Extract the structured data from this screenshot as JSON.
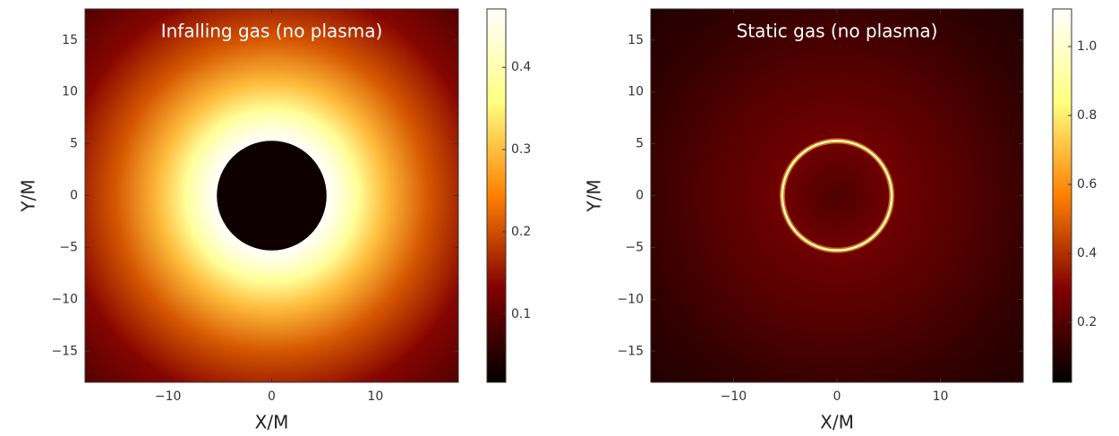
{
  "chart_data": [
    {
      "type": "image",
      "title": "Infalling gas (no plasma)",
      "x_label": "X/M",
      "y_label": "Y/M",
      "colormap": "afmhot",
      "xlim": [
        -18,
        18
      ],
      "ylim": [
        -18,
        18
      ],
      "xticks": [
        {
          "value": -10,
          "label": "−10"
        },
        0,
        10
      ],
      "yticks": [
        {
          "value": -15,
          "label": "−15"
        },
        {
          "value": -10,
          "label": "−10"
        },
        {
          "value": -5,
          "label": "−5"
        },
        0,
        5,
        10,
        15
      ],
      "colorbar_lim": [
        0.017,
        0.471
      ],
      "colorbar_ticks": [
        0.1,
        0.2,
        0.3,
        0.4
      ]
    },
    {
      "type": "image",
      "title": "Static gas (no plasma)",
      "x_label": "X/M",
      "y_label": "Y/M",
      "colormap": "afmhot",
      "xlim": [
        -18,
        18
      ],
      "ylim": [
        -18,
        18
      ],
      "xticks": [
        {
          "value": -10,
          "label": "−10"
        },
        0,
        10
      ],
      "yticks": [
        {
          "value": -15,
          "label": "−15"
        },
        {
          "value": -10,
          "label": "−10"
        },
        {
          "value": -5,
          "label": "−5"
        },
        0,
        5,
        10,
        15
      ],
      "colorbar_lim": [
        0.026,
        1.109
      ],
      "colorbar_ticks": [
        0.2,
        0.4,
        0.6,
        0.8,
        {
          "value": 1.0,
          "label": "1.0"
        }
      ]
    }
  ]
}
